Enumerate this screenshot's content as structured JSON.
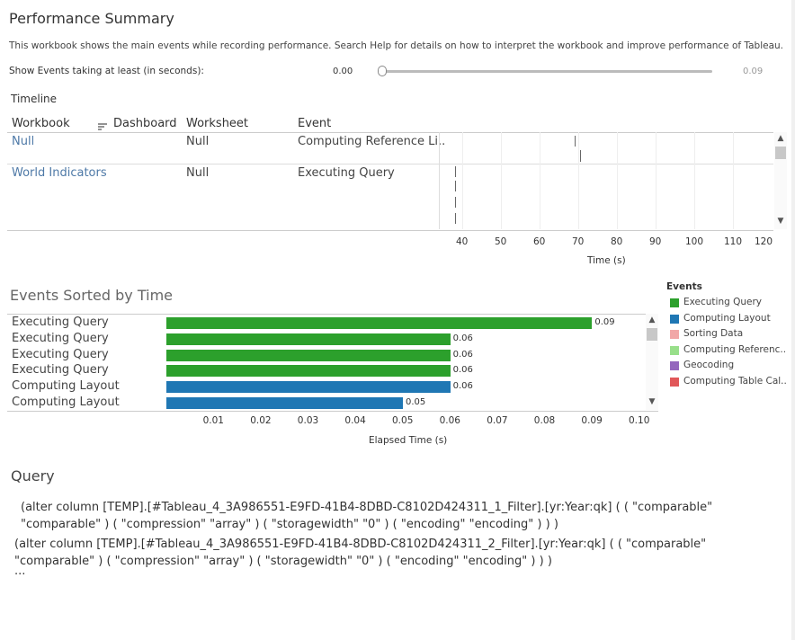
{
  "header": {
    "title": "Performance Summary",
    "description": "This workbook shows the main events while recording performance. Search Help for details on how to interpret the workbook and improve performance of Tableau.",
    "filter_label": "Show Events taking at least (in seconds):",
    "slider_min_value": "0.00",
    "slider_max_value": "0.09",
    "slider_fraction": 0.0
  },
  "timeline": {
    "title": "Timeline",
    "columns": [
      "Workbook",
      "Dashboard",
      "Worksheet",
      "Event"
    ],
    "sort_icon": "sort-descending-icon",
    "rows": [
      {
        "workbook": "Null",
        "worksheet": "Null",
        "event": "Computing Reference Li.."
      },
      {
        "workbook": "World Indicators",
        "worksheet": "Null",
        "event": "Executing Query"
      }
    ],
    "axis_label": "Time (s)",
    "x_ticks": [
      "40",
      "50",
      "60",
      "70",
      "80",
      "90",
      "100",
      "110",
      "120"
    ]
  },
  "events": {
    "title": "Events Sorted by Time",
    "axis_label": "Elapsed Time (s)",
    "x_ticks": [
      "0.01",
      "0.02",
      "0.03",
      "0.04",
      "0.05",
      "0.06",
      "0.07",
      "0.08",
      "0.09",
      "0.10"
    ]
  },
  "legend": {
    "title": "Events",
    "items": [
      {
        "label": "Executing Query",
        "color": "#2ca02c"
      },
      {
        "label": "Computing Layout",
        "color": "#1f77b4"
      },
      {
        "label": "Sorting Data",
        "color": "#f1a7a7"
      },
      {
        "label": "Computing Referenc..",
        "color": "#98df8a"
      },
      {
        "label": "Geocoding",
        "color": "#9467bd"
      },
      {
        "label": "Computing Table Cal..",
        "color": "#e15759"
      }
    ]
  },
  "chart_data": {
    "type": "bar",
    "orientation": "horizontal",
    "title": "Events Sorted by Time",
    "xlabel": "Elapsed Time (s)",
    "xlim": [
      0,
      0.1
    ],
    "categories": [
      "Executing Query",
      "Executing Query",
      "Executing Query",
      "Executing Query",
      "Computing Layout",
      "Computing Layout"
    ],
    "values": [
      0.09,
      0.06,
      0.06,
      0.06,
      0.06,
      0.05
    ],
    "bar_event_types": [
      "Executing Query",
      "Executing Query",
      "Executing Query",
      "Executing Query",
      "Computing Layout",
      "Computing Layout"
    ],
    "value_labels": [
      "0.09",
      "0.06",
      "0.06",
      "0.06",
      "0.06",
      "0.05"
    ],
    "bar_colors": [
      "#2ca02c",
      "#2ca02c",
      "#2ca02c",
      "#2ca02c",
      "#1f77b4",
      "#1f77b4"
    ]
  },
  "query": {
    "title": "Query",
    "lines": [
      "(alter column [TEMP].[#Tableau_4_3A986551-E9FD-41B4-8DBD-C8102D424311_1_Filter].[yr:Year:qk] ( ( \"comparable\"",
      "\"comparable\" ) ( \"compression\" \"array\" ) ( \"storagewidth\" \"0\" ) ( \"encoding\" \"encoding\" ) ) )",
      "(alter column [TEMP].[#Tableau_4_3A986551-E9FD-41B4-8DBD-C8102D424311_2_Filter].[yr:Year:qk] ( ( \"comparable\"",
      "\"comparable\" ) ( \"compression\" \"array\" ) ( \"storagewidth\" \"0\" ) ( \"encoding\" \"encoding\" ) ) )",
      "..."
    ]
  }
}
